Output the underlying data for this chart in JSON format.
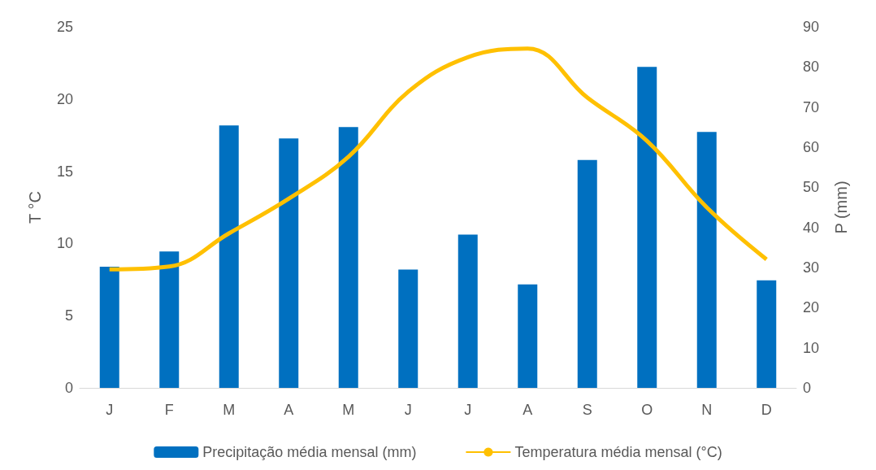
{
  "chart_data": {
    "type": "bar",
    "categories": [
      "J",
      "F",
      "M",
      "A",
      "M",
      "J",
      "J",
      "A",
      "S",
      "O",
      "N",
      "D"
    ],
    "ylabel": "T °C",
    "y2label": "P (mm)",
    "ylim": [
      0,
      25
    ],
    "yticks": [
      0,
      5,
      10,
      15,
      20,
      25
    ],
    "y2lim": [
      0,
      90
    ],
    "y2ticks": [
      0,
      10,
      20,
      30,
      40,
      50,
      60,
      70,
      80,
      90
    ],
    "series": [
      {
        "name": "Precipitação média mensal (mm)",
        "axis": "y2",
        "color": "#0070c0",
        "values": [
          30.2,
          34.0,
          65.4,
          62.2,
          65.0,
          29.5,
          38.2,
          25.8,
          56.8,
          80.0,
          63.8,
          26.8
        ]
      },
      {
        "name": "Temperatura média mensal (°C)",
        "type": "line",
        "axis": "y",
        "color": "#ffc000",
        "values": [
          8.2,
          8.4,
          10.7,
          13.1,
          16.0,
          20.5,
          22.9,
          23.5,
          20.1,
          17.1,
          12.5,
          8.9
        ]
      }
    ],
    "legend": "bottom",
    "grid": false,
    "marker": "none"
  }
}
